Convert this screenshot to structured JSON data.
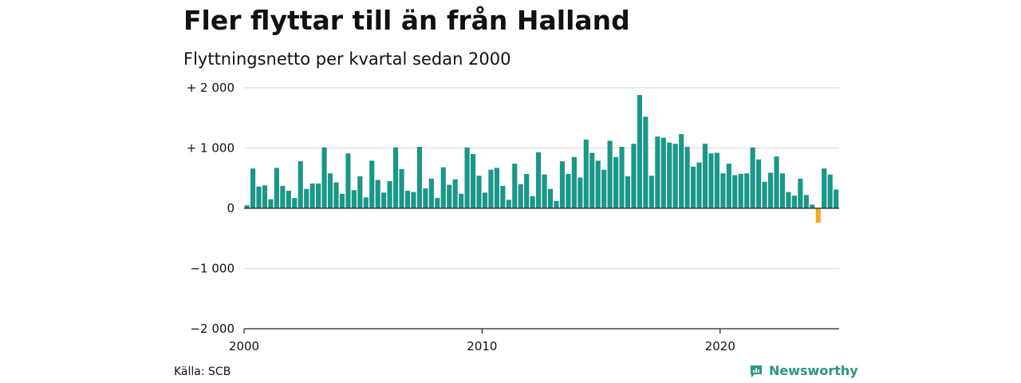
{
  "header": {
    "title": "Fler flyttar till än från Halland",
    "subtitle": "Flyttningsnetto per kvartal sedan 2000"
  },
  "footer": {
    "source": "Källa: SCB",
    "brand": "Newsworthy",
    "brand_icon": "newsworthy-logo-icon"
  },
  "colors": {
    "positive": "#1a9788",
    "negative": "#f5a623",
    "grid": "#dddddd",
    "axis": "#222222",
    "brand": "#2a9687"
  },
  "chart_data": {
    "type": "bar",
    "title": "Fler flyttar till än från Halland",
    "subtitle": "Flyttningsnetto per kvartal sedan 2000",
    "xlabel": "",
    "ylabel": "",
    "x_start": "2000Q1",
    "xlim": [
      2000,
      2025
    ],
    "ylim": [
      -2000,
      2000
    ],
    "yticks": [
      {
        "value": 2000,
        "label": "+ 2 000"
      },
      {
        "value": 1000,
        "label": "+ 1 000"
      },
      {
        "value": 0,
        "label": "0"
      },
      {
        "value": -1000,
        "label": "−1 000"
      },
      {
        "value": -2000,
        "label": "−2 000"
      }
    ],
    "xticks": [
      {
        "value": 2000,
        "label": "2000"
      },
      {
        "value": 2010,
        "label": "2010"
      },
      {
        "value": 2020,
        "label": "2020"
      }
    ],
    "grid": true,
    "values": [
      50,
      660,
      360,
      380,
      150,
      670,
      370,
      290,
      170,
      780,
      320,
      410,
      410,
      1010,
      580,
      430,
      240,
      910,
      300,
      530,
      180,
      790,
      470,
      260,
      450,
      1010,
      650,
      290,
      270,
      1020,
      330,
      490,
      170,
      680,
      390,
      480,
      240,
      1010,
      900,
      540,
      260,
      640,
      670,
      370,
      140,
      740,
      400,
      570,
      200,
      930,
      560,
      320,
      120,
      780,
      570,
      850,
      510,
      1140,
      920,
      790,
      640,
      1120,
      850,
      1020,
      530,
      1070,
      1880,
      1520,
      540,
      1190,
      1170,
      1090,
      1070,
      1230,
      1020,
      690,
      760,
      1070,
      910,
      920,
      580,
      740,
      550,
      570,
      580,
      1010,
      810,
      440,
      590,
      860,
      580,
      270,
      210,
      490,
      220,
      60,
      -240,
      660,
      560,
      310
    ]
  }
}
